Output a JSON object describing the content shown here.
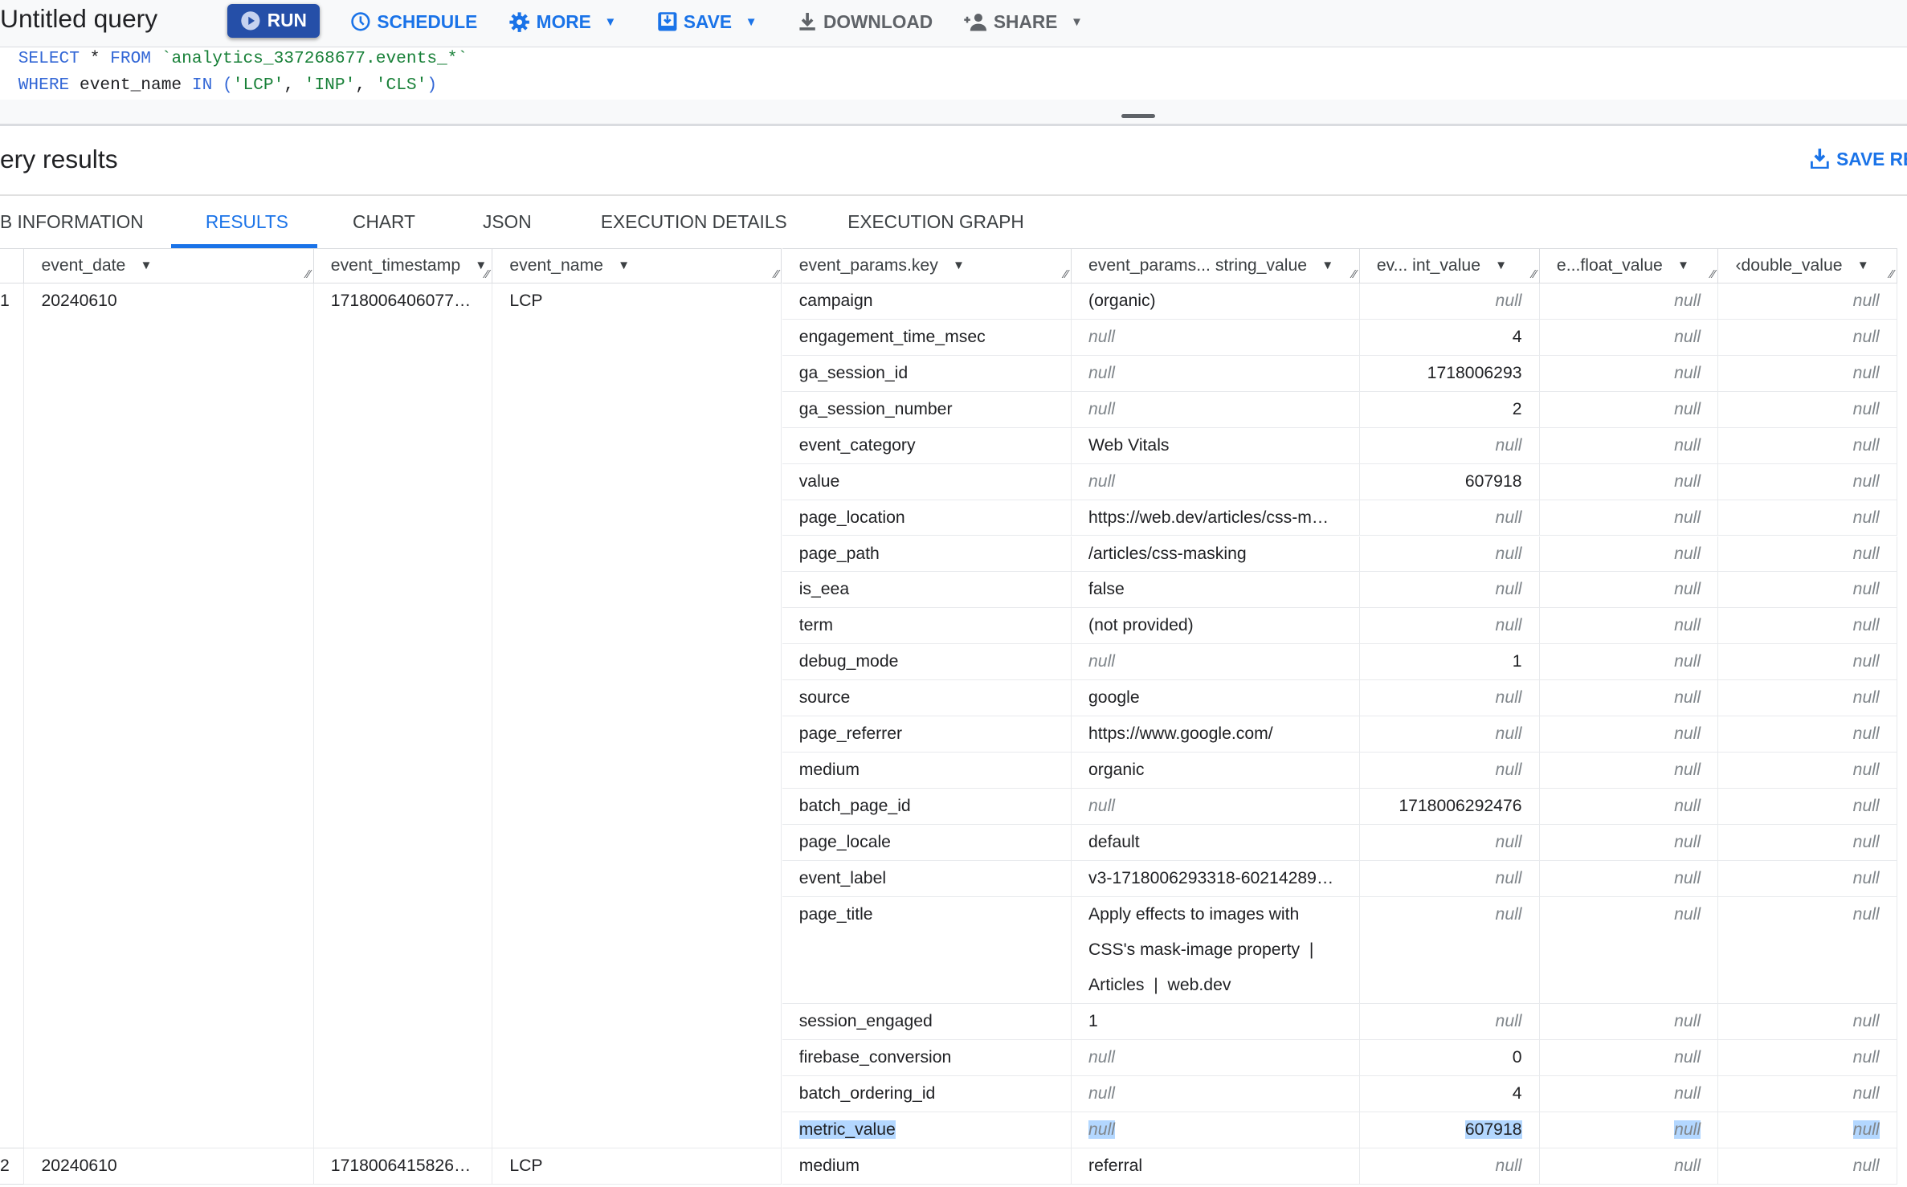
{
  "toolbar": {
    "title": "Untitled query",
    "run": "RUN",
    "schedule": "SCHEDULE",
    "more": "MORE",
    "save": "SAVE",
    "download": "DOWNLOAD",
    "share": "SHARE"
  },
  "editor": {
    "line1": {
      "kw1": "SELECT",
      "op": " * ",
      "kw2": "FROM",
      "sp": " ",
      "table": "`analytics_337268677.events_*`"
    },
    "line2": {
      "kw1": "WHERE",
      "col": " event_name ",
      "kw2": "IN",
      "sp": " ",
      "open": "(",
      "v1": "'LCP'",
      "c1": ", ",
      "v2": "'INP'",
      "c2": ", ",
      "v3": "'CLS'",
      "close": ")"
    }
  },
  "results": {
    "title": "ery results",
    "save_results": "SAVE RE",
    "tabs": [
      {
        "label": "B INFORMATION"
      },
      {
        "label": "RESULTS",
        "active": true
      },
      {
        "label": "CHART"
      },
      {
        "label": "JSON"
      },
      {
        "label": "EXECUTION DETAILS"
      },
      {
        "label": "EXECUTION GRAPH"
      }
    ]
  },
  "colors": {
    "accent": "#1a73e8",
    "run_button": "#254fa8",
    "selection": "#b3d7ff"
  },
  "table": {
    "columns": [
      "event_date",
      "event_timestamp",
      "event_name",
      "event_params.key",
      "event_params... string_value",
      "ev...  int_value",
      "e...float_value",
      "‹double_value"
    ],
    "null_label": "null",
    "records": [
      {
        "row": "1",
        "event_date": "20240610",
        "event_timestamp": "1718006406077…",
        "event_name": "LCP",
        "params": [
          [
            "campaign",
            "(organic)",
            null,
            null,
            null
          ],
          [
            "engagement_time_msec",
            null,
            "4",
            null,
            null
          ],
          [
            "ga_session_id",
            null,
            "1718006293",
            null,
            null
          ],
          [
            "ga_session_number",
            null,
            "2",
            null,
            null
          ],
          [
            "event_category",
            "Web Vitals",
            null,
            null,
            null
          ],
          [
            "value",
            null,
            "607918",
            null,
            null
          ],
          [
            "page_location",
            "https://web.dev/articles/css-m…",
            null,
            null,
            null
          ],
          [
            "page_path",
            "/articles/css-masking",
            null,
            null,
            null
          ],
          [
            "is_eea",
            "false",
            null,
            null,
            null
          ],
          [
            "term",
            "(not provided)",
            null,
            null,
            null
          ],
          [
            "debug_mode",
            null,
            "1",
            null,
            null
          ],
          [
            "source",
            "google",
            null,
            null,
            null
          ],
          [
            "page_referrer",
            "https://www.google.com/",
            null,
            null,
            null
          ],
          [
            "medium",
            "organic",
            null,
            null,
            null
          ],
          [
            "batch_page_id",
            null,
            "1718006292476",
            null,
            null
          ],
          [
            "page_locale",
            "default",
            null,
            null,
            null
          ],
          [
            "event_label",
            "v3-1718006293318-602142891…",
            null,
            null,
            null
          ],
          [
            "page_title",
            "Apply effects to images with\nCSS's mask-image property  |\nArticles  |  web.dev",
            null,
            null,
            null
          ],
          [
            "session_engaged",
            "1",
            null,
            null,
            null
          ],
          [
            "firebase_conversion",
            null,
            "0",
            null,
            null
          ],
          [
            "batch_ordering_id",
            null,
            "4",
            null,
            null
          ],
          [
            "metric_value",
            null,
            "607918",
            null,
            null
          ]
        ],
        "selected_param": "metric_value"
      },
      {
        "row": "2",
        "event_date": "20240610",
        "event_timestamp": "1718006415826…",
        "event_name": "LCP",
        "params": [
          [
            "medium",
            "referral",
            null,
            null,
            null
          ]
        ]
      }
    ]
  }
}
